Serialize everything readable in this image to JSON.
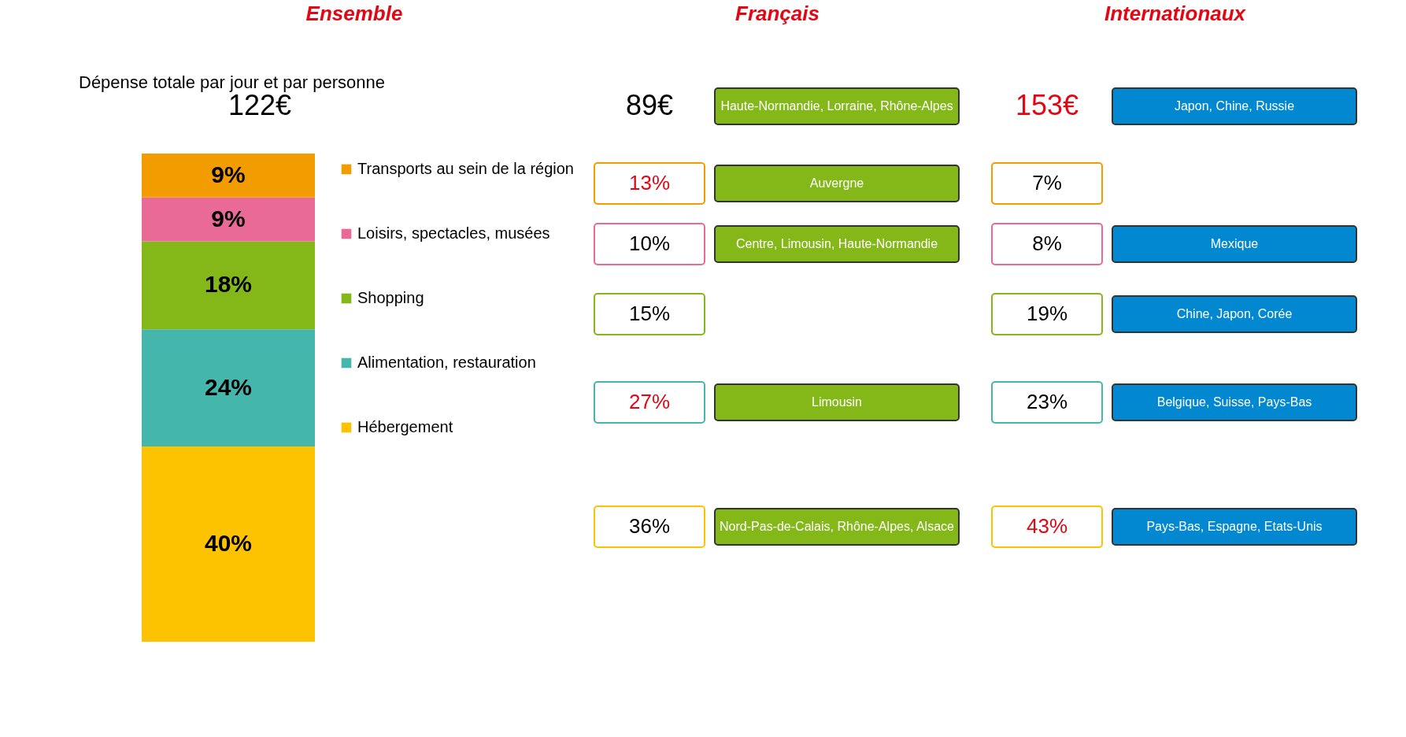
{
  "chart_data": [
    {
      "type": "bar",
      "title": "Ensemble",
      "categories": [
        null
      ],
      "stacked": true,
      "legend": "right",
      "annotations": [
        "Dépense totale par jour et par personne",
        "122€"
      ],
      "series": [
        {
          "name": "Hébergement",
          "color": "#fdc300",
          "values": [
            40
          ],
          "value_labels": [
            "40%"
          ]
        },
        {
          "name": "Alimentation, restauration",
          "color": "#45b6ab",
          "values": [
            24
          ],
          "value_labels": [
            "24%"
          ]
        },
        {
          "name": "Shopping",
          "color": "#84b819",
          "values": [
            18
          ],
          "value_labels": [
            "18%"
          ]
        },
        {
          "name": "Loisirs, spectacles, musées",
          "color": "#e96a97",
          "values": [
            9
          ],
          "value_labels": [
            "9%"
          ]
        },
        {
          "name": "Transports au sein de la région",
          "color": "#f39c00",
          "values": [
            9
          ],
          "value_labels": [
            "9%"
          ]
        }
      ]
    },
    {
      "type": "other",
      "title": "Français",
      "annotations": [
        "89€",
        "Haute-Normandie, Lorraine, Rhône-Alpes",
        "13%",
        "Auvergne",
        "10%",
        "Centre, Limousin, Haute-Normandie",
        "15%",
        "27%",
        "Limousin",
        "36%",
        "Nord-Pas-de-Calais, Rhône-Alpes, Alsace"
      ]
    },
    {
      "type": "other",
      "title": "Internationaux",
      "annotations": [
        "153€",
        "Japon, Chine, Russie",
        "7%",
        "8%",
        "Mexique",
        "19%",
        "Chine, Japon, Corée",
        "23%",
        "Belgique, Suisse, Pays-Bas",
        "43%",
        "Pays-Bas, Espagne, Etats-Unis"
      ]
    }
  ]
}
